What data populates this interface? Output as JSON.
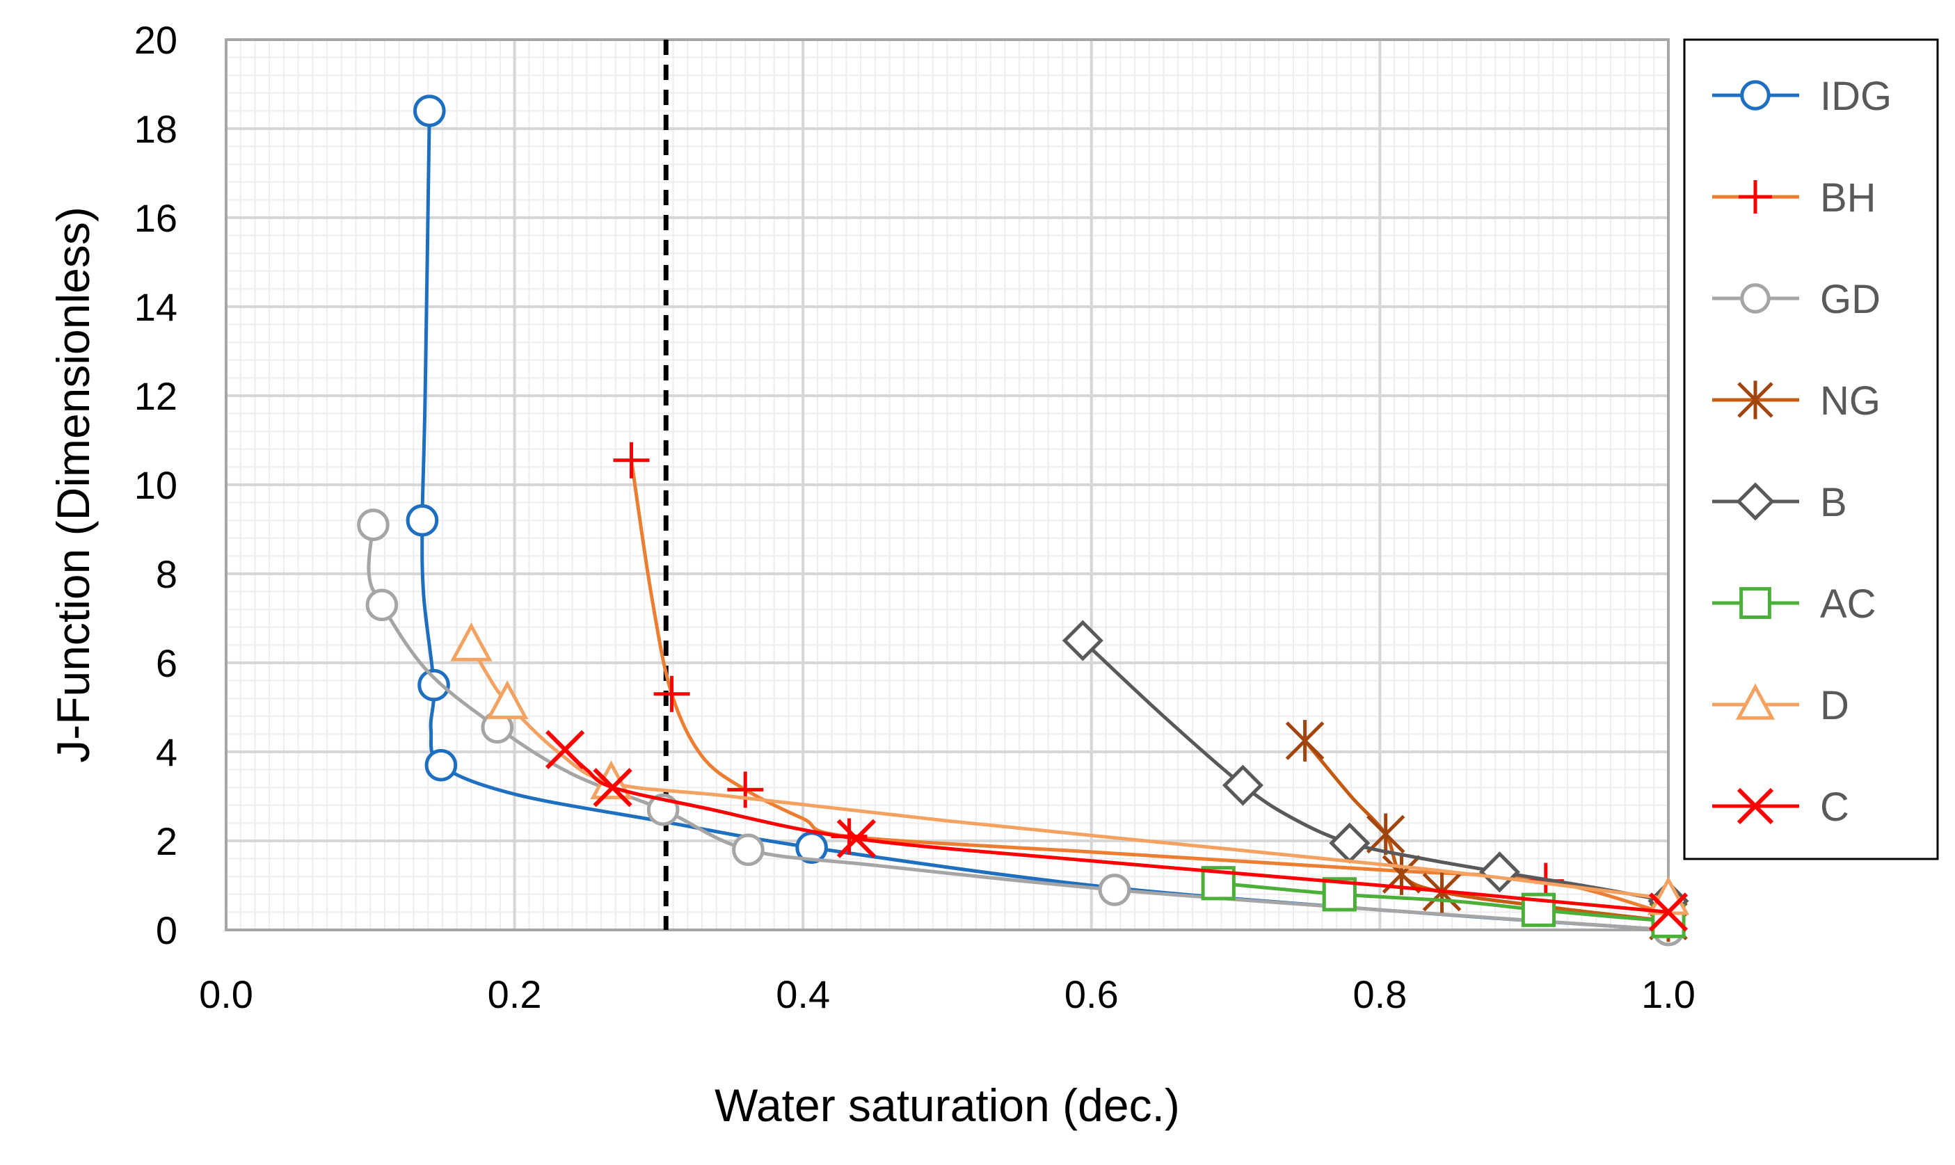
{
  "chart_data": {
    "type": "line",
    "title": "",
    "xlabel": "Water saturation (dec.)",
    "ylabel": "J-Function (Dimensionless)",
    "xlim": [
      0,
      1
    ],
    "ylim": [
      0,
      20
    ],
    "xticks": [
      "0.0",
      "0.2",
      "0.4",
      "0.6",
      "0.8",
      "1.0"
    ],
    "xtick_values": [
      0,
      0.2,
      0.4,
      0.6,
      0.8,
      1.0
    ],
    "yticks": [
      "0",
      "2",
      "4",
      "6",
      "8",
      "10",
      "12",
      "14",
      "16",
      "18",
      "20"
    ],
    "ytick_values": [
      0,
      2,
      4,
      6,
      8,
      10,
      12,
      14,
      16,
      18,
      20
    ],
    "grid": true,
    "legend_position": "right",
    "reference_line": {
      "x": 0.305,
      "style": "dashed",
      "color": "#000000"
    },
    "series": [
      {
        "name": "IDG",
        "color": "#1F6FC1",
        "marker": "circle",
        "x": [
          0.141,
          0.136,
          0.144,
          0.149,
          0.406,
          1.0
        ],
        "y": [
          18.4,
          9.2,
          5.5,
          3.7,
          1.85,
          0.0
        ],
        "curve": [
          [
            0.141,
            18.4
          ],
          [
            0.138,
            12
          ],
          [
            0.136,
            9.2
          ],
          [
            0.137,
            7.5
          ],
          [
            0.144,
            5.5
          ],
          [
            0.142,
            4.5
          ],
          [
            0.149,
            3.7
          ],
          [
            0.2,
            3.05
          ],
          [
            0.3,
            2.45
          ],
          [
            0.406,
            1.85
          ],
          [
            0.6,
            1.0
          ],
          [
            0.8,
            0.45
          ],
          [
            1.0,
            0.0
          ]
        ]
      },
      {
        "name": "BH",
        "color": "#ED7D31",
        "markerColor": "#FF0000",
        "marker": "plus",
        "x": [
          0.281,
          0.309,
          0.36,
          0.432,
          0.915,
          1.0
        ],
        "y": [
          10.55,
          5.3,
          3.15,
          2.1,
          1.1,
          0.35
        ],
        "curve": [
          [
            0.281,
            10.55
          ],
          [
            0.295,
            7.5
          ],
          [
            0.309,
            5.3
          ],
          [
            0.33,
            3.9
          ],
          [
            0.36,
            3.15
          ],
          [
            0.4,
            2.5
          ],
          [
            0.432,
            2.1
          ],
          [
            0.6,
            1.75
          ],
          [
            0.8,
            1.35
          ],
          [
            0.915,
            1.1
          ],
          [
            1.0,
            0.35
          ]
        ]
      },
      {
        "name": "GD",
        "color": "#A5A5A5",
        "marker": "circle",
        "x": [
          0.102,
          0.108,
          0.188,
          0.303,
          0.362,
          0.616,
          1.0
        ],
        "y": [
          9.1,
          7.3,
          4.55,
          2.7,
          1.8,
          0.9,
          0.0
        ],
        "curve": [
          [
            0.102,
            9.1
          ],
          [
            0.099,
            8.0
          ],
          [
            0.108,
            7.3
          ],
          [
            0.14,
            5.8
          ],
          [
            0.188,
            4.55
          ],
          [
            0.24,
            3.5
          ],
          [
            0.303,
            2.7
          ],
          [
            0.362,
            1.8
          ],
          [
            0.45,
            1.45
          ],
          [
            0.616,
            0.9
          ],
          [
            0.8,
            0.45
          ],
          [
            1.0,
            0.0
          ]
        ]
      },
      {
        "name": "NG",
        "color": "#C55A11",
        "markerColor": "#A0450D",
        "marker": "asterisk",
        "x": [
          0.748,
          0.804,
          0.815,
          0.843,
          1.0
        ],
        "y": [
          4.25,
          2.15,
          1.25,
          0.85,
          0.2
        ],
        "curve": [
          [
            0.748,
            4.25
          ],
          [
            0.78,
            3.0
          ],
          [
            0.804,
            2.15
          ],
          [
            0.815,
            1.25
          ],
          [
            0.843,
            0.85
          ],
          [
            0.92,
            0.5
          ],
          [
            1.0,
            0.2
          ]
        ]
      },
      {
        "name": "B",
        "color": "#595959",
        "marker": "diamond",
        "x": [
          0.594,
          0.705,
          0.779,
          0.883,
          1.0
        ],
        "y": [
          6.5,
          3.25,
          1.95,
          1.3,
          0.65
        ],
        "curve": [
          [
            0.594,
            6.5
          ],
          [
            0.65,
            4.8
          ],
          [
            0.705,
            3.25
          ],
          [
            0.74,
            2.5
          ],
          [
            0.779,
            1.95
          ],
          [
            0.83,
            1.6
          ],
          [
            0.883,
            1.3
          ],
          [
            0.94,
            1.0
          ],
          [
            1.0,
            0.65
          ]
        ]
      },
      {
        "name": "AC",
        "color": "#4CAF3A",
        "marker": "square",
        "x": [
          0.688,
          0.772,
          0.91,
          1.0
        ],
        "y": [
          1.05,
          0.8,
          0.45,
          0.2
        ],
        "curve": [
          [
            0.688,
            1.05
          ],
          [
            0.772,
            0.8
          ],
          [
            0.85,
            0.65
          ],
          [
            0.91,
            0.45
          ],
          [
            0.96,
            0.3
          ],
          [
            1.0,
            0.2
          ]
        ]
      },
      {
        "name": "D",
        "color": "#F4A261",
        "marker": "triangle",
        "x": [
          0.17,
          0.195,
          0.267,
          1.0
        ],
        "y": [
          6.4,
          5.1,
          3.3,
          0.7
        ],
        "curve": [
          [
            0.17,
            6.4
          ],
          [
            0.18,
            5.8
          ],
          [
            0.195,
            5.1
          ],
          [
            0.23,
            4.0
          ],
          [
            0.267,
            3.3
          ],
          [
            0.35,
            3.0
          ],
          [
            0.5,
            2.45
          ],
          [
            0.7,
            1.8
          ],
          [
            0.85,
            1.3
          ],
          [
            1.0,
            0.7
          ]
        ]
      },
      {
        "name": "C",
        "color": "#FF0000",
        "marker": "x",
        "x": [
          0.235,
          0.268,
          0.437,
          1.0
        ],
        "y": [
          4.05,
          3.2,
          2.05,
          0.4
        ],
        "curve": [
          [
            0.235,
            4.05
          ],
          [
            0.25,
            3.6
          ],
          [
            0.268,
            3.2
          ],
          [
            0.33,
            2.75
          ],
          [
            0.437,
            2.05
          ],
          [
            0.6,
            1.55
          ],
          [
            0.8,
            1.0
          ],
          [
            0.9,
            0.7
          ],
          [
            1.0,
            0.4
          ]
        ]
      }
    ]
  }
}
